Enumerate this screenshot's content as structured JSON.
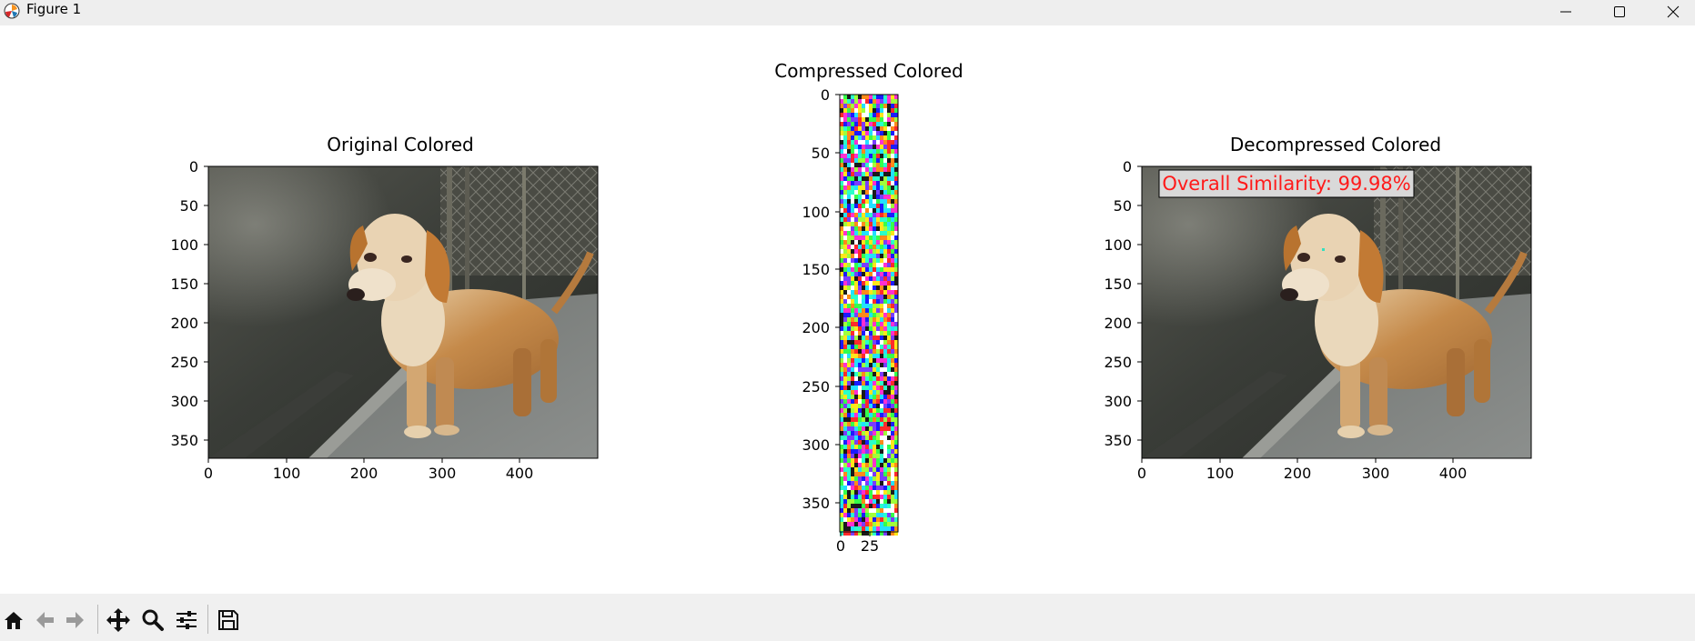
{
  "window": {
    "title": "Figure 1"
  },
  "figure": {
    "panels": [
      {
        "title": "Original Colored",
        "x_ticks": [
          "0",
          "100",
          "200",
          "300",
          "400"
        ],
        "y_ticks": [
          "0",
          "50",
          "100",
          "150",
          "200",
          "250",
          "300",
          "350"
        ]
      },
      {
        "title": "Compressed Colored",
        "x_ticks": [
          "0",
          "25"
        ],
        "y_ticks": [
          "0",
          "50",
          "100",
          "150",
          "200",
          "250",
          "300",
          "350"
        ]
      },
      {
        "title": "Decompressed Colored",
        "x_ticks": [
          "0",
          "100",
          "200",
          "300",
          "400"
        ],
        "y_ticks": [
          "0",
          "50",
          "100",
          "150",
          "200",
          "250",
          "300",
          "350"
        ],
        "annotation": "Overall Similarity: 99.98%"
      }
    ],
    "annotation_color": "#ff1a1a"
  },
  "toolbar": {
    "items": [
      "home-icon",
      "back-icon",
      "forward-icon",
      "pan-icon",
      "zoom-icon",
      "configure-icon",
      "save-icon"
    ]
  }
}
